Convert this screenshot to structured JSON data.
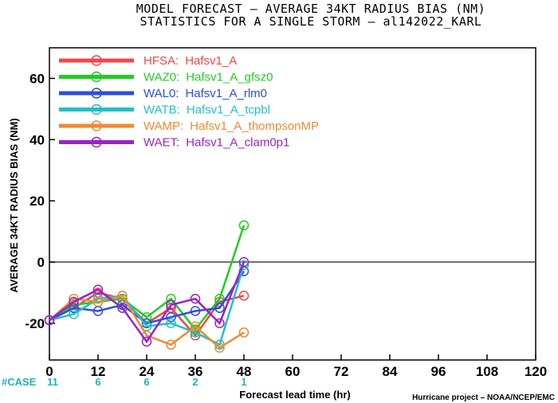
{
  "title_line1": "MODEL FORECAST – AVERAGE 34KT RADIUS BIAS (NM)",
  "title_line2": "STATISTICS FOR A SINGLE STORM – al142022_KARL",
  "credit": "Hurricane project – NOAA/NCEP/EMC",
  "case_label": "#CASE",
  "case_x": [
    0,
    12,
    24,
    36,
    48
  ],
  "case_counts": [
    "11",
    "6",
    "6",
    "2",
    "1"
  ],
  "chart_data": {
    "type": "line",
    "xlabel": "Forecast lead time (hr)",
    "ylabel": "AVERAGE 34KT RADIUS BIAS (NM)",
    "xlim": [
      0,
      120
    ],
    "ylim": [
      -32,
      70
    ],
    "xticks": [
      0,
      12,
      24,
      36,
      48,
      60,
      72,
      84,
      96,
      108,
      120
    ],
    "yticks": [
      -20,
      0,
      20,
      40,
      60
    ],
    "zero_line": true,
    "legend_position": "top-left",
    "x": [
      0,
      6,
      12,
      18,
      24,
      30,
      36,
      42,
      48
    ],
    "series": [
      {
        "code": "HFSA:",
        "name": "Hafsv1_A",
        "color": "#f04848",
        "values": [
          -19,
          -15,
          -10,
          -12,
          -20,
          -15,
          -24,
          -13,
          -11
        ]
      },
      {
        "code": "WAZ0:",
        "name": "Hafsv1_A_gfsz0",
        "color": "#22cc22",
        "values": [
          -19,
          -14,
          -13,
          -12,
          -18,
          -12,
          -22,
          -12,
          12
        ]
      },
      {
        "code": "WAL0:",
        "name": "Hafsv1_A_rlm0",
        "color": "#2a4ee0",
        "values": [
          -19,
          -15,
          -16,
          -14,
          -20,
          -18,
          -16,
          -15,
          -3
        ]
      },
      {
        "code": "WATB:",
        "name": "Hafsv1_A_tcpbl",
        "color": "#20c0c8",
        "values": [
          -19,
          -17,
          -12,
          -11,
          -21,
          -20,
          -23,
          -27,
          -1
        ]
      },
      {
        "code": "WAMP:",
        "name": "Hafsv1_A_thompsonMP",
        "color": "#f08a30",
        "values": [
          -19,
          -12,
          -13,
          -11,
          -24,
          -27,
          -21,
          -28,
          -23
        ]
      },
      {
        "code": "WAET:",
        "name": "Hafsv1_A_clam0p1",
        "color": "#9a22c8",
        "values": [
          -19,
          -13,
          -9,
          -15,
          -26,
          -14,
          -12,
          -20,
          0
        ]
      }
    ]
  }
}
